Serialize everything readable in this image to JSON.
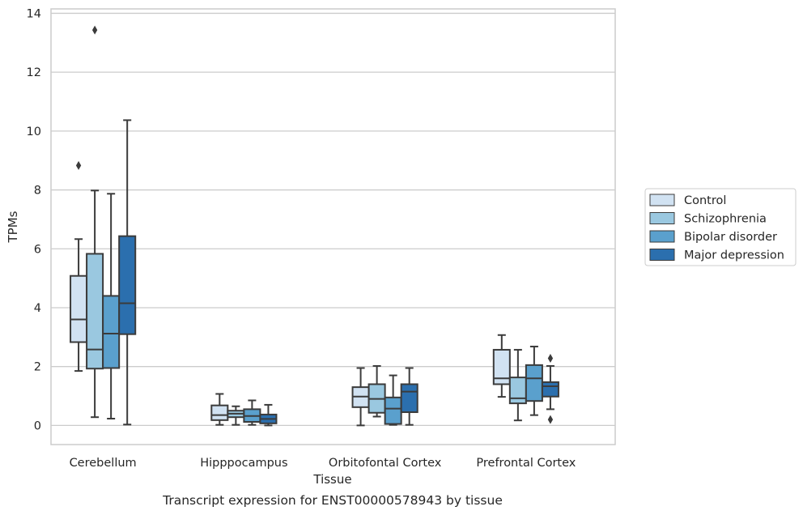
{
  "chart_data": {
    "type": "box",
    "xlabel": "Tissue",
    "ylabel": "TPMs",
    "caption": "Transcript expression for ENST00000578943 by tissue",
    "ylim": [
      -0.65,
      14.15
    ],
    "yticks": [
      "0",
      "2",
      "4",
      "6",
      "8",
      "10",
      "12",
      "14"
    ],
    "grid": "horizontal",
    "legend_position": "right",
    "categories": [
      "Cerebellum",
      "Hipppocampus",
      "Orbitofontal Cortex",
      "Prefrontal Cortex"
    ],
    "series": [
      {
        "name": "Control",
        "color": "#d1e2f2",
        "boxes": [
          {
            "whisker_low": 1.85,
            "q1": 2.83,
            "median": 3.6,
            "q3": 5.08,
            "whisker_high": 6.33,
            "outliers": [
              8.83
            ]
          },
          {
            "whisker_low": 0.02,
            "q1": 0.18,
            "median": 0.35,
            "q3": 0.68,
            "whisker_high": 1.07,
            "outliers": []
          },
          {
            "whisker_low": 0.0,
            "q1": 0.62,
            "median": 0.98,
            "q3": 1.3,
            "whisker_high": 1.95,
            "outliers": []
          },
          {
            "whisker_low": 0.97,
            "q1": 1.4,
            "median": 1.6,
            "q3": 2.57,
            "whisker_high": 3.07,
            "outliers": []
          }
        ]
      },
      {
        "name": "Schizophrenia",
        "color": "#9ac8e0",
        "boxes": [
          {
            "whisker_low": 0.28,
            "q1": 1.93,
            "median": 2.58,
            "q3": 5.83,
            "whisker_high": 7.98,
            "outliers": [
              13.43
            ]
          },
          {
            "whisker_low": 0.02,
            "q1": 0.28,
            "median": 0.4,
            "q3": 0.5,
            "whisker_high": 0.65,
            "outliers": []
          },
          {
            "whisker_low": 0.3,
            "q1": 0.43,
            "median": 0.9,
            "q3": 1.4,
            "whisker_high": 2.02,
            "outliers": []
          },
          {
            "whisker_low": 0.17,
            "q1": 0.75,
            "median": 0.92,
            "q3": 1.63,
            "whisker_high": 2.57,
            "outliers": []
          }
        ]
      },
      {
        "name": "Bipolar disorder",
        "color": "#5aa0cd",
        "boxes": [
          {
            "whisker_low": 0.23,
            "q1": 1.95,
            "median": 3.12,
            "q3": 4.4,
            "whisker_high": 7.87,
            "outliers": []
          },
          {
            "whisker_low": 0.02,
            "q1": 0.12,
            "median": 0.32,
            "q3": 0.55,
            "whisker_high": 0.85,
            "outliers": []
          },
          {
            "whisker_low": 0.02,
            "q1": 0.05,
            "median": 0.57,
            "q3": 0.95,
            "whisker_high": 1.7,
            "outliers": []
          },
          {
            "whisker_low": 0.35,
            "q1": 0.83,
            "median": 1.6,
            "q3": 2.05,
            "whisker_high": 2.68,
            "outliers": []
          }
        ]
      },
      {
        "name": "Major depression",
        "color": "#2b6fae",
        "boxes": [
          {
            "whisker_low": 0.03,
            "q1": 3.1,
            "median": 4.15,
            "q3": 6.43,
            "whisker_high": 10.37,
            "outliers": []
          },
          {
            "whisker_low": 0.0,
            "q1": 0.07,
            "median": 0.22,
            "q3": 0.37,
            "whisker_high": 0.7,
            "outliers": []
          },
          {
            "whisker_low": 0.02,
            "q1": 0.45,
            "median": 1.15,
            "q3": 1.4,
            "whisker_high": 1.95,
            "outliers": []
          },
          {
            "whisker_low": 0.55,
            "q1": 0.98,
            "median": 1.33,
            "q3": 1.47,
            "whisker_high": 2.02,
            "outliers": [
              2.28,
              0.2
            ]
          }
        ]
      }
    ]
  }
}
